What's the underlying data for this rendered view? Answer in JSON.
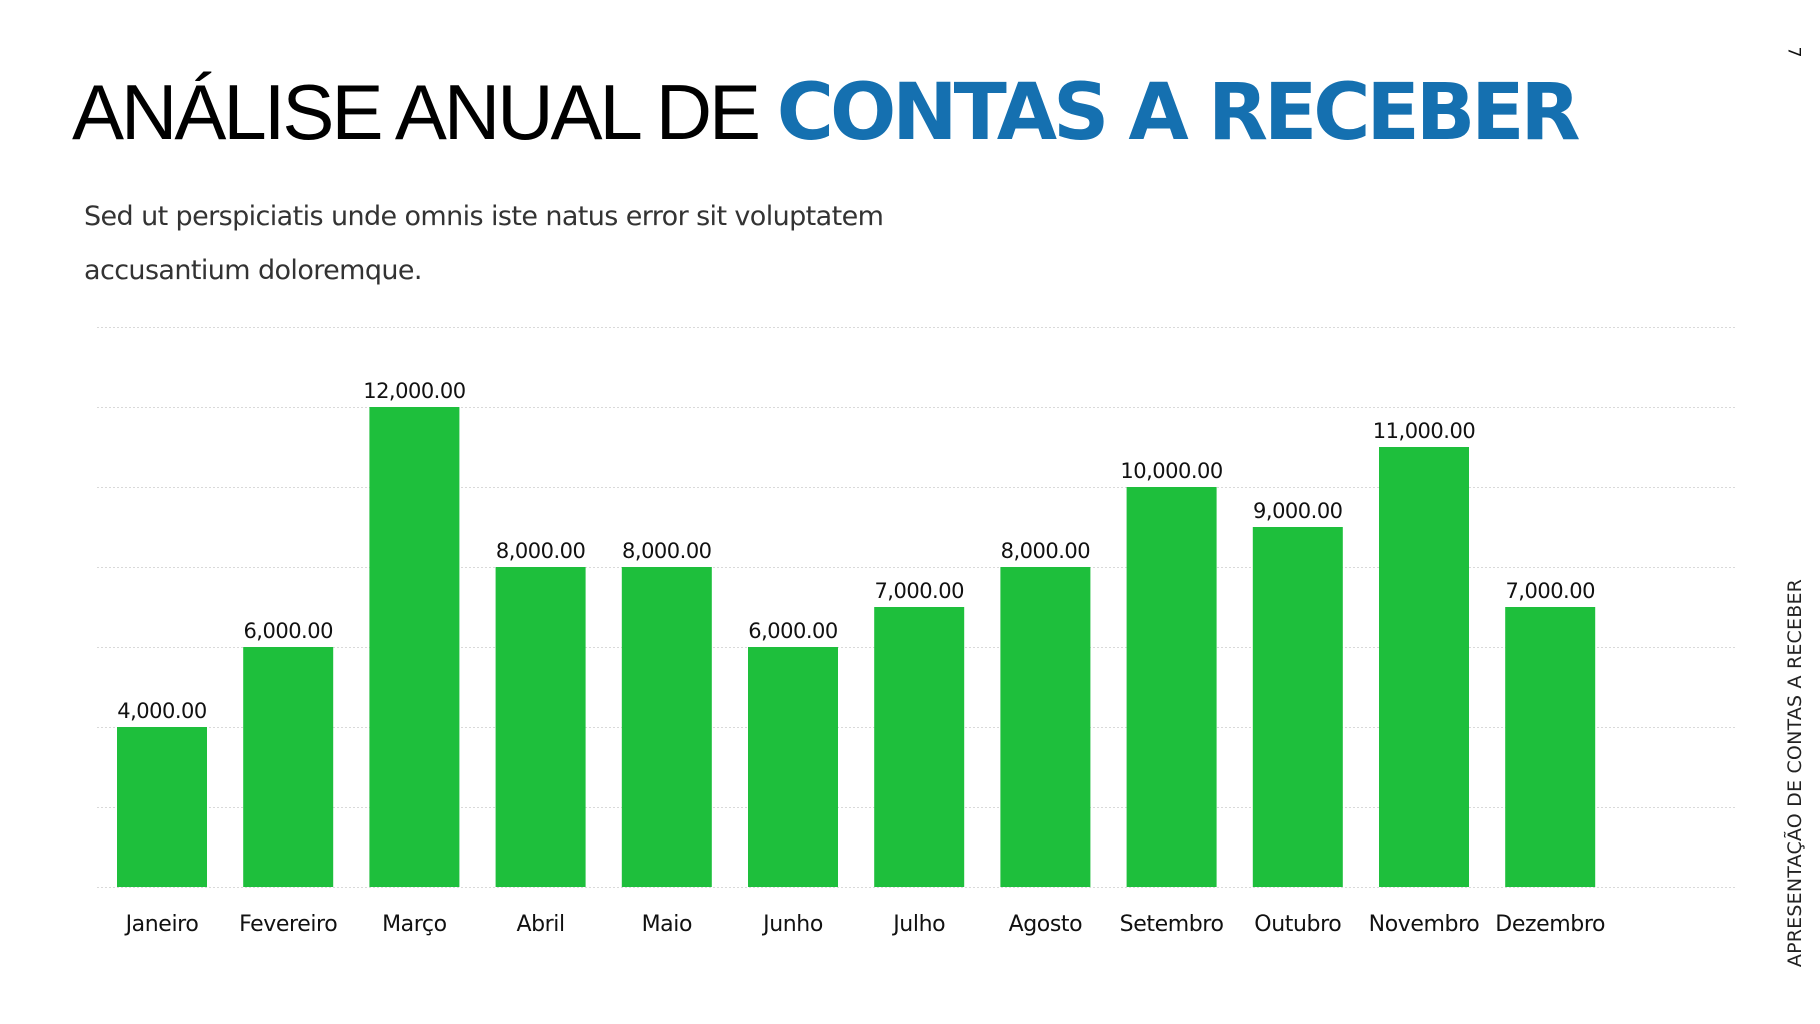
{
  "header": {
    "title_light": "ANÁLISE ANUAL DE ",
    "title_bold": "CONTAS A RECEBER",
    "subtitle_line1": "Sed ut perspiciatis unde omnis iste natus error sit voluptatem",
    "subtitle_line2": "accusantium doloremque."
  },
  "page_number": "7",
  "side_label": "APRESENTAÇÃO DE CONTAS A RECEBER",
  "colors": {
    "accent_blue": "#1570B0",
    "bar_green": "#1EBF3C",
    "gridline": "#D9D9D9"
  },
  "chart_data": {
    "type": "bar",
    "title": "",
    "xlabel": "",
    "ylabel": "",
    "categories": [
      "Janeiro",
      "Fevereiro",
      "Março",
      "Abril",
      "Maio",
      "Junho",
      "Julho",
      "Agosto",
      "Setembro",
      "Outubro",
      "Novembro",
      "Dezembro"
    ],
    "values": [
      4000,
      6000,
      12000,
      8000,
      8000,
      6000,
      7000,
      8000,
      10000,
      9000,
      11000,
      7000
    ],
    "data_labels": [
      "4,000.00",
      "6,000.00",
      "12,000.00",
      "8,000.00",
      "8,000.00",
      "6,000.00",
      "7,000.00",
      "8,000.00",
      "10,000.00",
      "9,000.00",
      "11,000.00",
      "7,000.00"
    ],
    "ylim": [
      0,
      14000
    ],
    "ytick_step": 2000,
    "grid": true,
    "grid_style": "dotted",
    "y_axis_labels_visible": false,
    "legend": "none"
  }
}
